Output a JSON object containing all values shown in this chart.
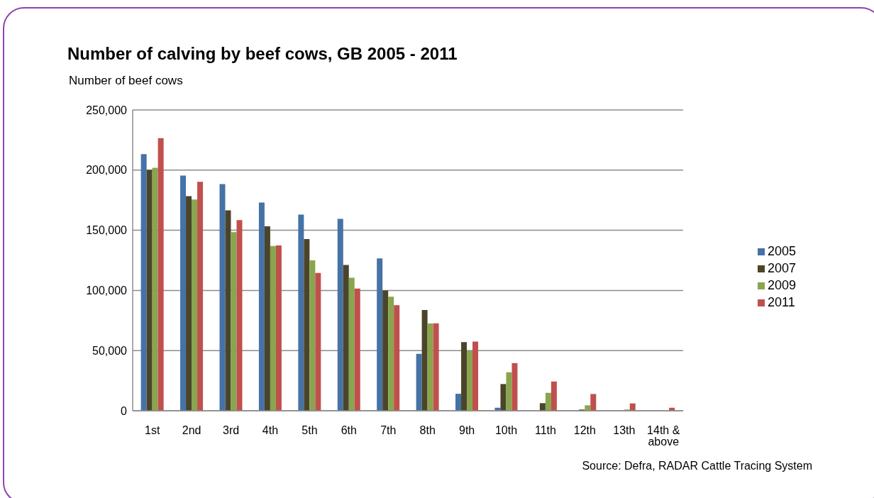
{
  "chart_data": {
    "type": "bar",
    "title": "Number of calving by beef cows, GB 2005 - 2011",
    "ylabel": "Number of beef cows",
    "categories": [
      "1st",
      "2nd",
      "3rd",
      "4th",
      "5th",
      "6th",
      "7th",
      "8th",
      "9th",
      "10th",
      "11th",
      "12th",
      "13th",
      "14th & above"
    ],
    "series": [
      {
        "name": "2005",
        "color": "#4572a7",
        "values": [
          213300,
          195400,
          188400,
          173100,
          163100,
          159500,
          126600,
          47300,
          14100,
          2500,
          0,
          0,
          0,
          0
        ]
      },
      {
        "name": "2007",
        "color": "#4a452a",
        "values": [
          200200,
          178400,
          166600,
          153300,
          142700,
          121100,
          99900,
          83700,
          57000,
          22200,
          6300,
          1000,
          0,
          0
        ]
      },
      {
        "name": "2009",
        "color": "#89a54e",
        "values": [
          201900,
          175600,
          148500,
          137000,
          125000,
          110500,
          94800,
          72500,
          49800,
          32000,
          14900,
          4500,
          1000,
          0
        ]
      },
      {
        "name": "2011",
        "color": "#c0504d",
        "values": [
          226500,
          190300,
          158400,
          137400,
          114600,
          101500,
          87700,
          72700,
          57500,
          39600,
          24300,
          13900,
          6100,
          2500
        ]
      }
    ],
    "ylim": [
      0,
      250000
    ],
    "yticks": [
      {
        "value": 0,
        "label": "0"
      },
      {
        "value": 50000,
        "label": "50,000"
      },
      {
        "value": 100000,
        "label": "100,000"
      },
      {
        "value": 150000,
        "label": "150,000"
      },
      {
        "value": 200000,
        "label": "200,000"
      },
      {
        "value": 250000,
        "label": "250,000"
      }
    ],
    "grid": "y",
    "legend": "right",
    "annotations": [
      "Source: Defra, RADAR Cattle Tracing System"
    ]
  }
}
